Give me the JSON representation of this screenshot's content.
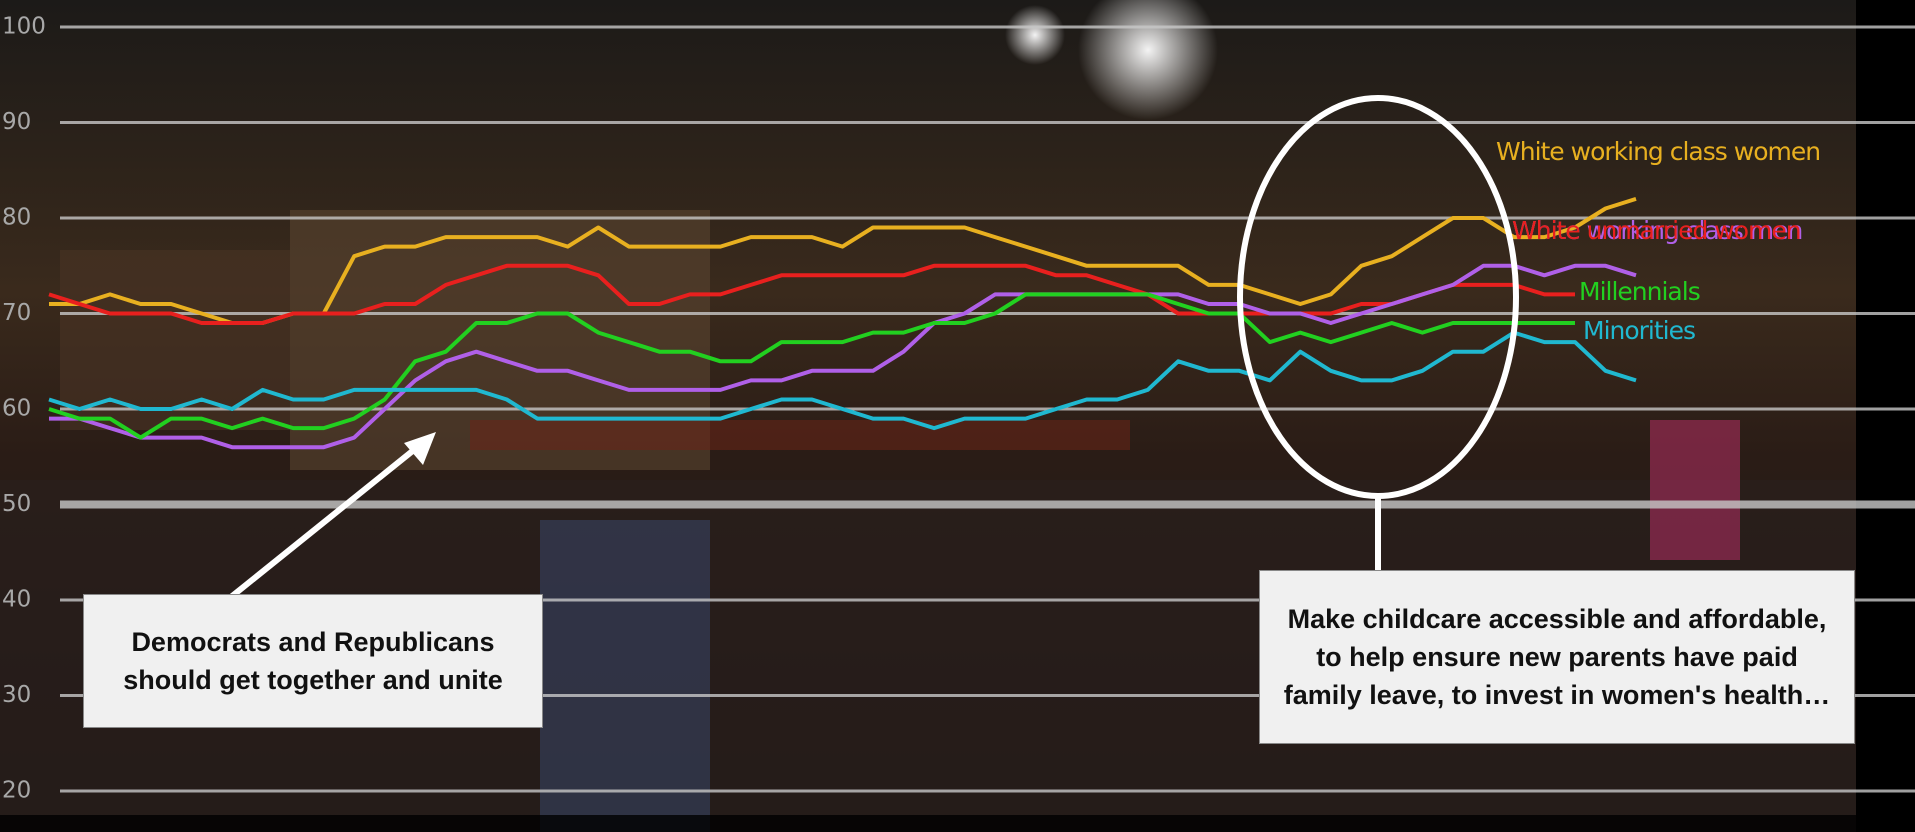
{
  "chart_data": {
    "type": "line",
    "ylim": [
      20,
      100
    ],
    "yticks": [
      20,
      30,
      40,
      50,
      60,
      70,
      80,
      90,
      100
    ],
    "grid": true,
    "series": [
      {
        "name": "White working class women",
        "color": "#e8b020",
        "values": [
          71,
          71,
          72,
          71,
          71,
          70,
          69,
          69,
          70,
          70,
          76,
          77,
          77,
          78,
          78,
          78,
          78,
          77,
          79,
          77,
          77,
          77,
          77,
          78,
          78,
          78,
          77,
          79,
          79,
          79,
          79,
          78,
          77,
          76,
          75,
          75,
          75,
          75,
          73,
          73,
          72,
          71,
          72,
          75,
          76,
          78,
          80,
          80,
          78,
          78,
          79,
          81,
          82
        ]
      },
      {
        "name": "White unmarried women",
        "color": "#e8201e",
        "values": [
          72,
          71,
          70,
          70,
          70,
          69,
          69,
          69,
          70,
          70,
          70,
          71,
          71,
          73,
          74,
          75,
          75,
          75,
          74,
          71,
          71,
          72,
          72,
          73,
          74,
          74,
          74,
          74,
          74,
          75,
          75,
          75,
          75,
          74,
          74,
          73,
          72,
          70,
          70,
          70,
          70,
          70,
          70,
          71,
          71,
          72,
          73,
          73,
          73,
          72,
          72,
          null,
          null
        ]
      },
      {
        "name": "White working class men",
        "color": "#b060e8",
        "values": [
          59,
          59,
          58,
          57,
          57,
          57,
          56,
          56,
          56,
          56,
          57,
          60,
          63,
          65,
          66,
          65,
          64,
          64,
          63,
          62,
          62,
          62,
          62,
          63,
          63,
          64,
          64,
          64,
          66,
          69,
          70,
          72,
          72,
          72,
          72,
          72,
          72,
          72,
          71,
          71,
          70,
          70,
          69,
          70,
          71,
          72,
          73,
          75,
          75,
          74,
          75,
          75,
          74
        ]
      },
      {
        "name": "Millennials",
        "color": "#22d020",
        "values": [
          60,
          59,
          59,
          57,
          59,
          59,
          58,
          59,
          58,
          58,
          59,
          61,
          65,
          66,
          69,
          69,
          70,
          70,
          68,
          67,
          66,
          66,
          65,
          65,
          67,
          67,
          67,
          68,
          68,
          69,
          69,
          70,
          72,
          72,
          72,
          72,
          72,
          71,
          70,
          70,
          67,
          68,
          67,
          68,
          69,
          68,
          69,
          69,
          69,
          69,
          69,
          null,
          null
        ]
      },
      {
        "name": "Minorities",
        "color": "#20b8d0",
        "values": [
          61,
          60,
          61,
          60,
          60,
          61,
          60,
          62,
          61,
          61,
          62,
          62,
          62,
          62,
          62,
          61,
          59,
          59,
          59,
          59,
          59,
          59,
          59,
          60,
          61,
          61,
          60,
          59,
          59,
          58,
          59,
          59,
          59,
          60,
          61,
          61,
          62,
          65,
          64,
          64,
          63,
          66,
          64,
          63,
          63,
          64,
          66,
          66,
          68,
          67,
          67,
          64,
          63
        ]
      }
    ],
    "annotations": [
      "Democrats and Republicans should get together and unite",
      "Make childcare accessible and affordable, to help ensure new parents have paid family leave, to invest in women's health…"
    ]
  }
}
